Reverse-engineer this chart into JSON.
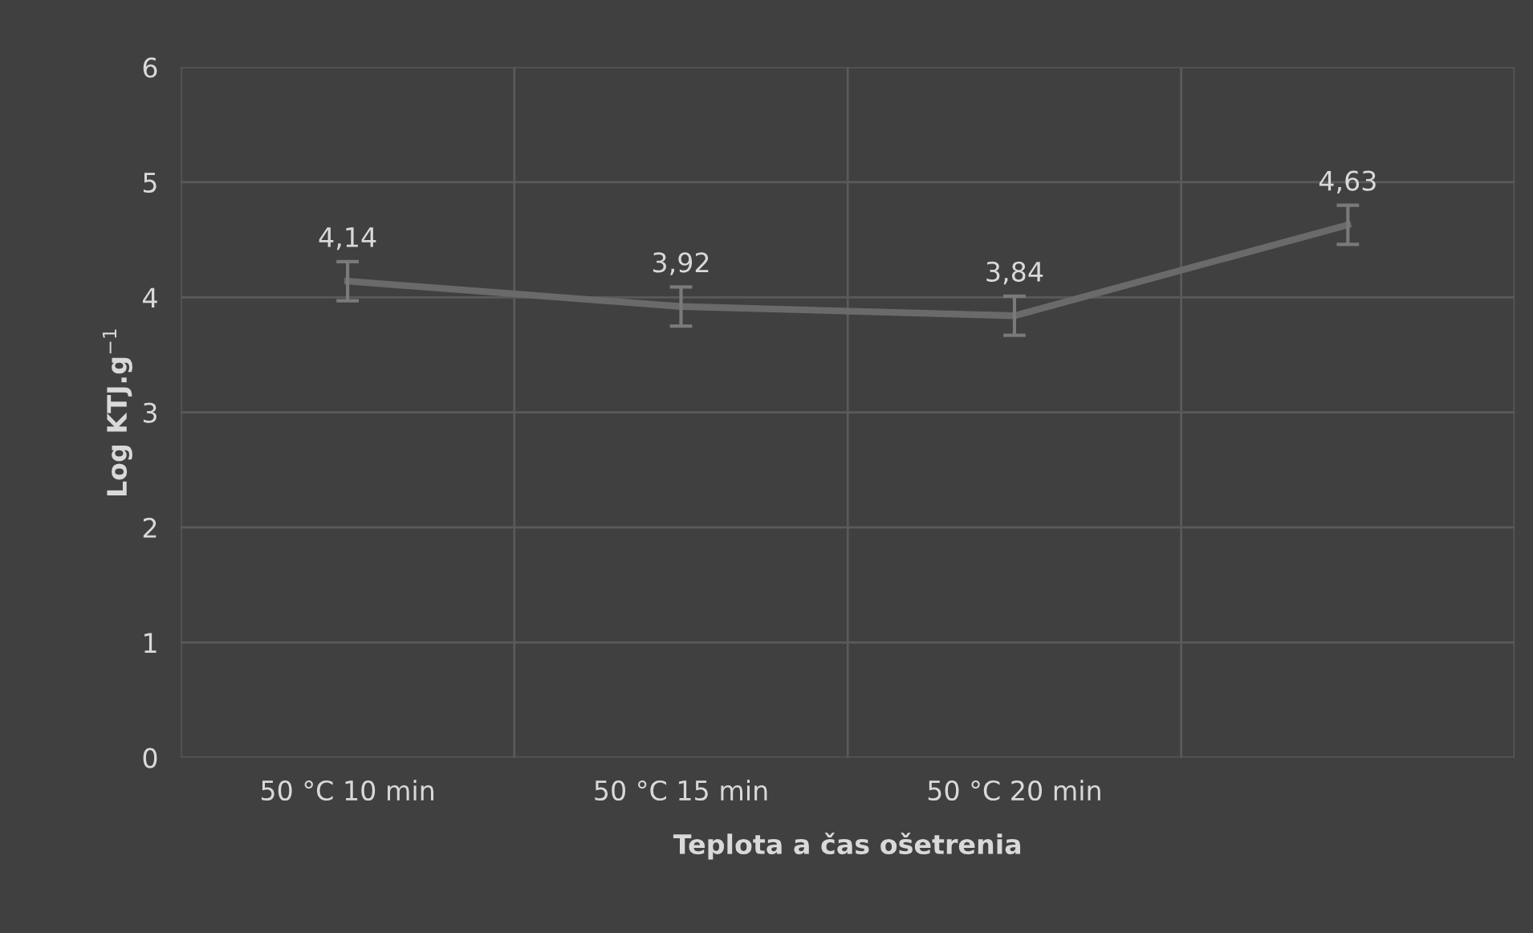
{
  "chart_data": {
    "type": "line",
    "xlabel": "Teplota a čas ošetrenia",
    "ylabel": "Log KTJ.g$^{−1}$",
    "categories": [
      "50 °C 10 min",
      "50 °C 15 min",
      "50 °C 20 min",
      null
    ],
    "series": [
      {
        "color": "#6a6a6a",
        "values": [
          4.14,
          3.92,
          3.84,
          4.63
        ],
        "errors": [
          0.17,
          0.17,
          0.17,
          0.17
        ],
        "value_labels": [
          "4,14",
          "3,92",
          "3,84",
          "4,63"
        ]
      }
    ],
    "ylim": [
      0,
      6
    ],
    "yticks": [
      0,
      1,
      2,
      3,
      4,
      5,
      6
    ],
    "grid": true,
    "legend": false,
    "marker": "none",
    "line_style": "solid"
  }
}
